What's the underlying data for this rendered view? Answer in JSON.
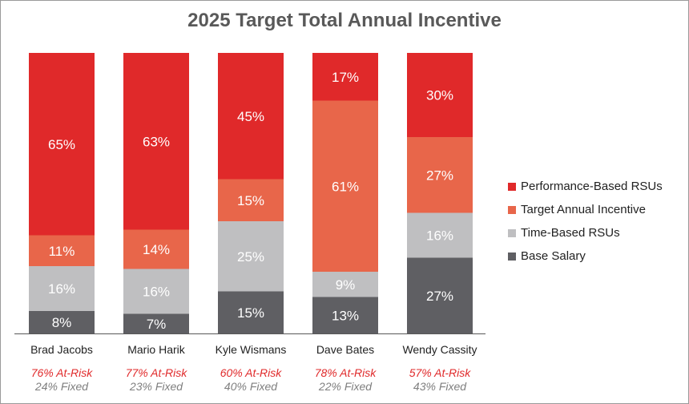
{
  "chart_data": {
    "type": "bar",
    "stacked": true,
    "title": "2025 Target Total Annual Incentive",
    "categories": [
      "Brad Jacobs",
      "Mario Harik",
      "Kyle Wismans",
      "Dave Bates",
      "Wendy Cassity"
    ],
    "series": [
      {
        "name": "Base Salary",
        "color": "#5f5f63",
        "values": [
          8,
          7,
          15,
          13,
          27
        ]
      },
      {
        "name": "Time-Based RSUs",
        "color": "#bfbfc1",
        "values": [
          16,
          16,
          25,
          9,
          16
        ]
      },
      {
        "name": "Target Annual Incentive",
        "color": "#e8664a",
        "values": [
          11,
          14,
          15,
          61,
          27
        ]
      },
      {
        "name": "Performance-Based RSUs",
        "color": "#e0292a",
        "values": [
          65,
          63,
          45,
          17,
          30
        ]
      }
    ],
    "value_suffix": "%",
    "at_risk_labels": [
      "76% At-Risk",
      "77% At-Risk",
      "60% At-Risk",
      "78% At-Risk",
      "57% At-Risk"
    ],
    "fixed_labels": [
      "24% Fixed",
      "23% Fixed",
      "40% Fixed",
      "22% Fixed",
      "43% Fixed"
    ],
    "legend": {
      "position": "right",
      "items": [
        "Performance-Based RSUs",
        "Target Annual Incentive",
        "Time-Based RSUs",
        "Base Salary"
      ]
    },
    "ylim": [
      0,
      100
    ],
    "colors": {
      "at_risk_text": "#e0292a",
      "fixed_text": "#7f7f7f",
      "value_text": "#ffffff",
      "axis": "#595959"
    }
  }
}
